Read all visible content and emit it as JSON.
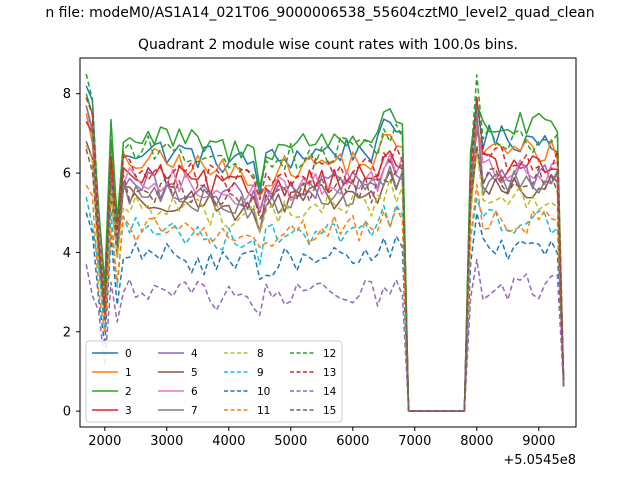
{
  "figure": {
    "suptitle": "n file: modeM0/AS1A14_021T06_9000006538_55604cztM0_level2_quad_clean",
    "title": "Quadrant 2 module wise count rates with 100.0s bins.",
    "offset_label": "+5.0545e8"
  },
  "chart_data": {
    "type": "line",
    "title": "Quadrant 2 module wise count rates with 100.0s bins.",
    "xlabel": "",
    "ylabel": "",
    "x_offset": 505450000,
    "xlim": [
      1600,
      9600
    ],
    "ylim": [
      -0.4,
      8.9
    ],
    "xticks": [
      2000,
      3000,
      4000,
      5000,
      6000,
      7000,
      8000,
      9000
    ],
    "yticks": [
      0,
      2,
      4,
      6,
      8
    ],
    "segments": [
      [
        1700,
        6800
      ],
      [
        6900,
        7800
      ],
      [
        7900,
        9400
      ]
    ],
    "legend": {
      "placement": "lower-left",
      "columns": 4
    },
    "series": [
      {
        "name": "0",
        "color": "#1f77b4",
        "dash": "solid",
        "level": 6.6,
        "start": 8.2
      },
      {
        "name": "1",
        "color": "#ff7f0e",
        "dash": "solid",
        "level": 6.3,
        "start": 7.5
      },
      {
        "name": "2",
        "color": "#2ca02c",
        "dash": "solid",
        "level": 6.9,
        "start": 8.0
      },
      {
        "name": "3",
        "color": "#d62728",
        "dash": "solid",
        "level": 5.9,
        "start": 7.3
      },
      {
        "name": "4",
        "color": "#9467bd",
        "dash": "solid",
        "level": 5.7,
        "start": 7.7
      },
      {
        "name": "5",
        "color": "#8c564b",
        "dash": "solid",
        "level": 5.4,
        "start": 6.8
      },
      {
        "name": "6",
        "color": "#e377c2",
        "dash": "solid",
        "level": 5.8,
        "start": 7.4
      },
      {
        "name": "7",
        "color": "#7f7f7f",
        "dash": "solid",
        "level": 5.5,
        "start": 7.7
      },
      {
        "name": "8",
        "color": "#bcbd22",
        "dash": "dashed",
        "level": 5.2,
        "start": 6.7
      },
      {
        "name": "9",
        "color": "#17becf",
        "dash": "dashed",
        "level": 4.6,
        "start": 5.4
      },
      {
        "name": "10",
        "color": "#1f77b4",
        "dash": "dashed",
        "level": 3.9,
        "start": 5.0
      },
      {
        "name": "11",
        "color": "#ff7f0e",
        "dash": "dashed",
        "level": 4.6,
        "start": 5.7
      },
      {
        "name": "12",
        "color": "#2ca02c",
        "dash": "dashed",
        "level": 6.6,
        "start": 8.5
      },
      {
        "name": "13",
        "color": "#d62728",
        "dash": "dashed",
        "level": 6.1,
        "start": 7.9
      },
      {
        "name": "14",
        "color": "#9467bd",
        "dash": "dashed",
        "level": 3.0,
        "start": 3.7
      },
      {
        "name": "15",
        "color": "#8c564b",
        "dash": "dashed",
        "level": 5.6,
        "start": 6.6
      }
    ]
  }
}
